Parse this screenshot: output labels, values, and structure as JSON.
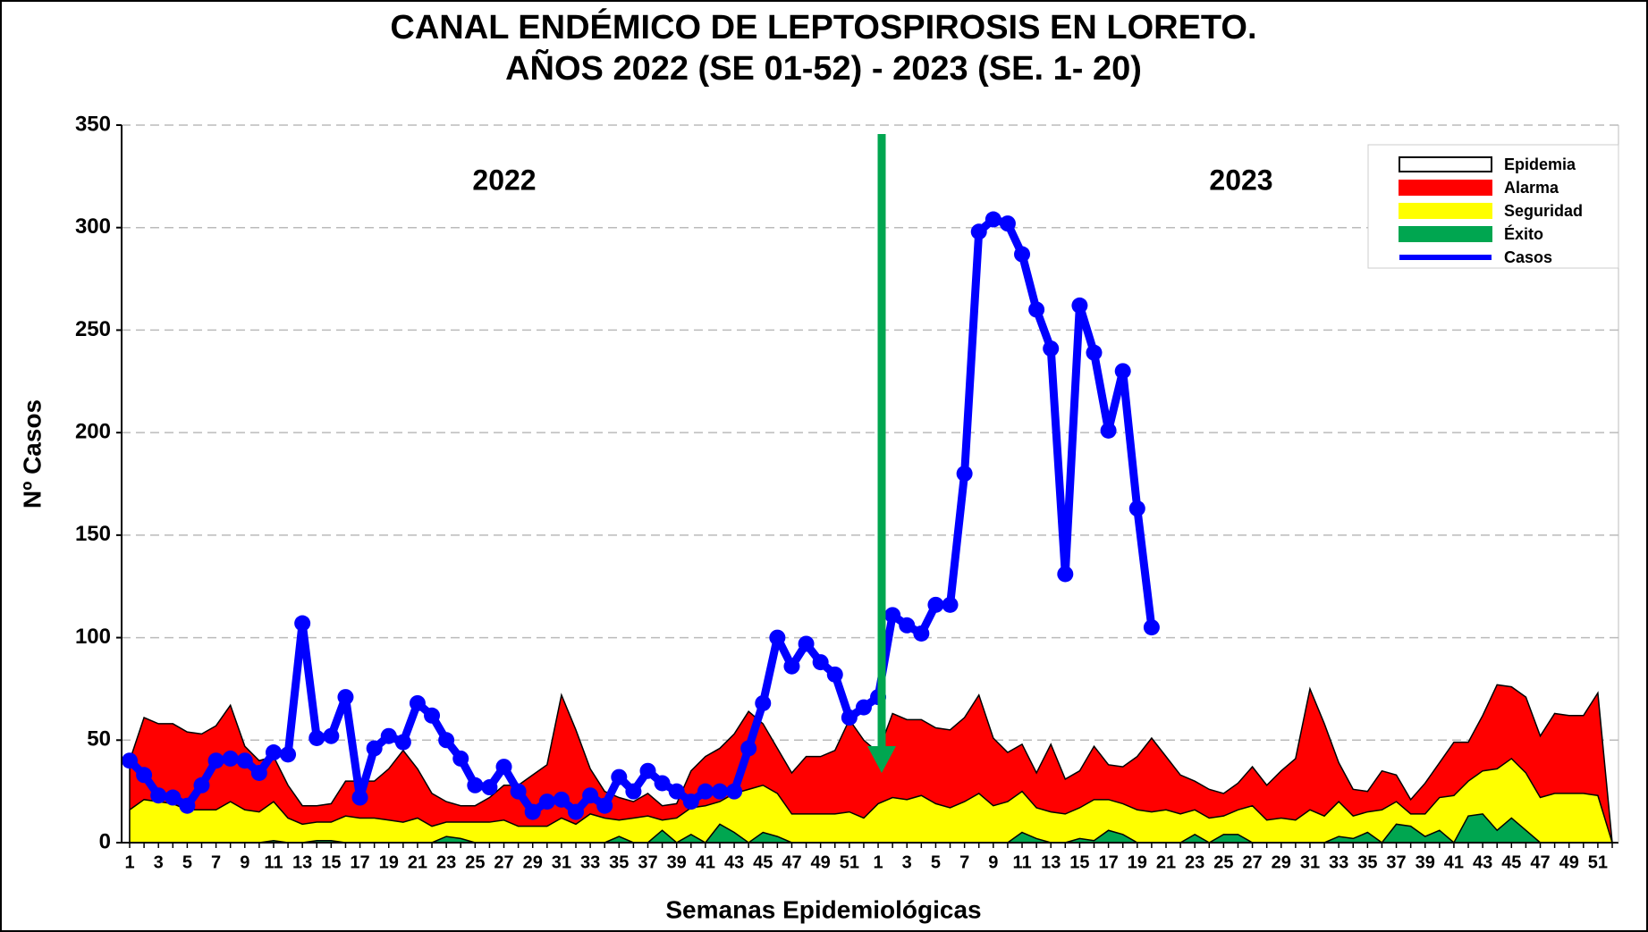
{
  "chart_data": {
    "type": "area-line",
    "title": "CANAL ENDÉMICO DE LEPTOSPIROSIS EN LORETO.",
    "subtitle": "AÑOS 2022 (SE 01-52) - 2023 (SE. 1- 20)",
    "annotations": [
      "2022",
      "2023"
    ],
    "xlabel": "Semanas Epidemiológicas",
    "ylabel": "Nº Casos",
    "categories": [
      "1",
      null,
      "3",
      null,
      "5",
      null,
      "7",
      null,
      "9",
      null,
      "11",
      null,
      "13",
      null,
      "15",
      null,
      "17",
      null,
      "19",
      null,
      "21",
      null,
      "23",
      null,
      "25",
      null,
      "27",
      null,
      "29",
      null,
      "31",
      null,
      "33",
      null,
      "35",
      null,
      "37",
      null,
      "39",
      null,
      "41",
      null,
      "43",
      null,
      "45",
      null,
      "47",
      null,
      "49",
      null,
      "51",
      null,
      "1",
      null,
      "3",
      null,
      "5",
      null,
      "7",
      null,
      "9",
      null,
      "11",
      null,
      "13",
      null,
      "15",
      null,
      "17",
      null,
      "19",
      null,
      "21",
      null,
      "23",
      null,
      "25",
      null,
      "27",
      null,
      "29",
      null,
      "31",
      null,
      "33",
      null,
      "35",
      null,
      "37",
      null,
      "39",
      null,
      "41",
      null,
      "43",
      null,
      "45",
      null,
      "47",
      null,
      "49",
      null,
      "51",
      null
    ],
    "ylim": [
      0,
      350
    ],
    "yticks": [
      0,
      50,
      100,
      150,
      200,
      250,
      300,
      350
    ],
    "grid": true,
    "legend": "top-right",
    "series": [
      {
        "name": "Epidemia",
        "color": "#ffffff"
      },
      {
        "name": "Alarma",
        "color": "#ff0000",
        "values": [
          40,
          61,
          58,
          58,
          54,
          53,
          57,
          67,
          47,
          40,
          42,
          28,
          18,
          18,
          19,
          30,
          30,
          30,
          36,
          45,
          36,
          24,
          20,
          18,
          18,
          22,
          28,
          28,
          33,
          38,
          72,
          55,
          36,
          25,
          22,
          20,
          24,
          18,
          19,
          35,
          42,
          46,
          53,
          64,
          58,
          46,
          34,
          42,
          42,
          45,
          60,
          50,
          44,
          63,
          60,
          60,
          56,
          55,
          61,
          72,
          51,
          44,
          48,
          34,
          48,
          31,
          35,
          47,
          38,
          37,
          42,
          51,
          42,
          33,
          30,
          26,
          24,
          29,
          37,
          28,
          35,
          41,
          75,
          58,
          39,
          26,
          25,
          35,
          33,
          21,
          29,
          39,
          49,
          49,
          62,
          77,
          76,
          71,
          52,
          63,
          62,
          62,
          73,
          0
        ]
      },
      {
        "name": "Seguridad",
        "color": "#ffff00",
        "values": [
          16,
          21,
          20,
          19,
          16,
          16,
          16,
          20,
          16,
          15,
          20,
          12,
          9,
          10,
          10,
          13,
          12,
          12,
          11,
          10,
          12,
          8,
          10,
          10,
          10,
          10,
          11,
          8,
          8,
          8,
          12,
          9,
          14,
          12,
          11,
          12,
          13,
          11,
          12,
          17,
          18,
          20,
          24,
          26,
          28,
          24,
          14,
          14,
          14,
          14,
          15,
          12,
          19,
          22,
          21,
          23,
          19,
          17,
          20,
          24,
          18,
          20,
          25,
          17,
          15,
          14,
          17,
          21,
          21,
          19,
          16,
          15,
          16,
          14,
          16,
          12,
          13,
          16,
          18,
          11,
          12,
          11,
          16,
          13,
          20,
          13,
          15,
          16,
          20,
          14,
          14,
          22,
          23,
          30,
          35,
          36,
          41,
          34,
          22,
          24,
          24,
          24,
          23,
          0
        ]
      },
      {
        "name": "Éxito",
        "color": "#00a650",
        "values": [
          0,
          0,
          0,
          0,
          0,
          0,
          0,
          0,
          0,
          0,
          1,
          0,
          0,
          1,
          1,
          0,
          0,
          0,
          0,
          0,
          0,
          0,
          3,
          2,
          0,
          0,
          0,
          0,
          0,
          0,
          0,
          0,
          0,
          0,
          3,
          0,
          0,
          6,
          0,
          4,
          0,
          9,
          5,
          0,
          5,
          3,
          0,
          0,
          0,
          0,
          0,
          0,
          0,
          0,
          0,
          0,
          0,
          0,
          0,
          0,
          0,
          0,
          5,
          2,
          0,
          0,
          2,
          1,
          6,
          4,
          0,
          0,
          0,
          0,
          4,
          0,
          4,
          4,
          0,
          0,
          0,
          0,
          0,
          0,
          3,
          2,
          5,
          0,
          9,
          8,
          3,
          6,
          0,
          13,
          14,
          6,
          12,
          6,
          0,
          0,
          0,
          0,
          0,
          0
        ]
      },
      {
        "name": "Casos",
        "color": "#0000ff",
        "values": [
          40,
          33,
          23,
          22,
          18,
          28,
          40,
          41,
          40,
          34,
          44,
          43,
          107,
          51,
          52,
          71,
          22,
          46,
          52,
          49,
          68,
          62,
          50,
          41,
          28,
          27,
          37,
          25,
          15,
          20,
          21,
          15,
          23,
          18,
          32,
          25,
          35,
          29,
          25,
          20,
          25,
          25,
          25,
          46,
          68,
          100,
          86,
          97,
          88,
          82,
          61,
          66,
          71,
          111,
          106,
          102,
          116,
          116,
          180,
          298,
          304,
          302,
          287,
          260,
          241,
          131,
          262,
          239,
          201,
          230,
          163,
          105,
          null,
          null,
          null,
          null,
          null,
          null,
          null,
          null,
          null,
          null,
          null,
          null,
          null,
          null,
          null,
          null,
          null,
          null,
          null,
          null,
          null,
          null,
          null,
          null,
          null,
          null,
          null,
          null,
          null,
          null,
          null,
          null
        ]
      }
    ]
  }
}
